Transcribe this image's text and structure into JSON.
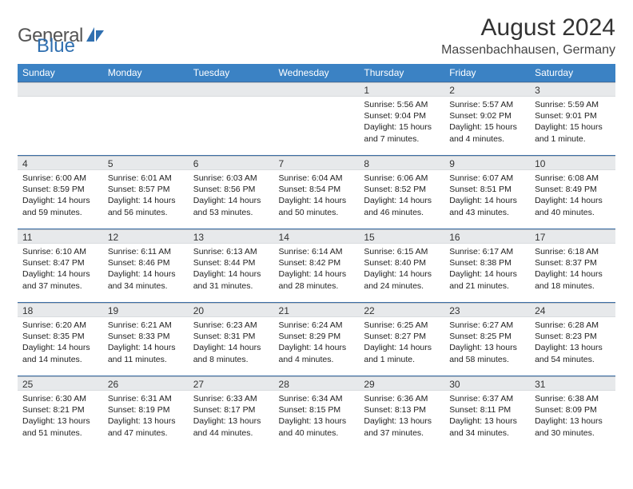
{
  "brand": {
    "name": "General",
    "accent": "Blue"
  },
  "title": "August 2024",
  "location": "Massenbachhausen, Germany",
  "colors": {
    "header_bg": "#3b82c4",
    "header_text": "#ffffff",
    "strip_bg": "#e7e9eb",
    "row_border": "#3b6ea5",
    "logo_gray": "#6a6f73",
    "logo_blue": "#2f6fb0"
  },
  "day_labels": [
    "Sunday",
    "Monday",
    "Tuesday",
    "Wednesday",
    "Thursday",
    "Friday",
    "Saturday"
  ],
  "weeks": [
    [
      {
        "n": "",
        "sr": "",
        "ss": "",
        "dl": ""
      },
      {
        "n": "",
        "sr": "",
        "ss": "",
        "dl": ""
      },
      {
        "n": "",
        "sr": "",
        "ss": "",
        "dl": ""
      },
      {
        "n": "",
        "sr": "",
        "ss": "",
        "dl": ""
      },
      {
        "n": "1",
        "sr": "Sunrise: 5:56 AM",
        "ss": "Sunset: 9:04 PM",
        "dl": "Daylight: 15 hours and 7 minutes."
      },
      {
        "n": "2",
        "sr": "Sunrise: 5:57 AM",
        "ss": "Sunset: 9:02 PM",
        "dl": "Daylight: 15 hours and 4 minutes."
      },
      {
        "n": "3",
        "sr": "Sunrise: 5:59 AM",
        "ss": "Sunset: 9:01 PM",
        "dl": "Daylight: 15 hours and 1 minute."
      }
    ],
    [
      {
        "n": "4",
        "sr": "Sunrise: 6:00 AM",
        "ss": "Sunset: 8:59 PM",
        "dl": "Daylight: 14 hours and 59 minutes."
      },
      {
        "n": "5",
        "sr": "Sunrise: 6:01 AM",
        "ss": "Sunset: 8:57 PM",
        "dl": "Daylight: 14 hours and 56 minutes."
      },
      {
        "n": "6",
        "sr": "Sunrise: 6:03 AM",
        "ss": "Sunset: 8:56 PM",
        "dl": "Daylight: 14 hours and 53 minutes."
      },
      {
        "n": "7",
        "sr": "Sunrise: 6:04 AM",
        "ss": "Sunset: 8:54 PM",
        "dl": "Daylight: 14 hours and 50 minutes."
      },
      {
        "n": "8",
        "sr": "Sunrise: 6:06 AM",
        "ss": "Sunset: 8:52 PM",
        "dl": "Daylight: 14 hours and 46 minutes."
      },
      {
        "n": "9",
        "sr": "Sunrise: 6:07 AM",
        "ss": "Sunset: 8:51 PM",
        "dl": "Daylight: 14 hours and 43 minutes."
      },
      {
        "n": "10",
        "sr": "Sunrise: 6:08 AM",
        "ss": "Sunset: 8:49 PM",
        "dl": "Daylight: 14 hours and 40 minutes."
      }
    ],
    [
      {
        "n": "11",
        "sr": "Sunrise: 6:10 AM",
        "ss": "Sunset: 8:47 PM",
        "dl": "Daylight: 14 hours and 37 minutes."
      },
      {
        "n": "12",
        "sr": "Sunrise: 6:11 AM",
        "ss": "Sunset: 8:46 PM",
        "dl": "Daylight: 14 hours and 34 minutes."
      },
      {
        "n": "13",
        "sr": "Sunrise: 6:13 AM",
        "ss": "Sunset: 8:44 PM",
        "dl": "Daylight: 14 hours and 31 minutes."
      },
      {
        "n": "14",
        "sr": "Sunrise: 6:14 AM",
        "ss": "Sunset: 8:42 PM",
        "dl": "Daylight: 14 hours and 28 minutes."
      },
      {
        "n": "15",
        "sr": "Sunrise: 6:15 AM",
        "ss": "Sunset: 8:40 PM",
        "dl": "Daylight: 14 hours and 24 minutes."
      },
      {
        "n": "16",
        "sr": "Sunrise: 6:17 AM",
        "ss": "Sunset: 8:38 PM",
        "dl": "Daylight: 14 hours and 21 minutes."
      },
      {
        "n": "17",
        "sr": "Sunrise: 6:18 AM",
        "ss": "Sunset: 8:37 PM",
        "dl": "Daylight: 14 hours and 18 minutes."
      }
    ],
    [
      {
        "n": "18",
        "sr": "Sunrise: 6:20 AM",
        "ss": "Sunset: 8:35 PM",
        "dl": "Daylight: 14 hours and 14 minutes."
      },
      {
        "n": "19",
        "sr": "Sunrise: 6:21 AM",
        "ss": "Sunset: 8:33 PM",
        "dl": "Daylight: 14 hours and 11 minutes."
      },
      {
        "n": "20",
        "sr": "Sunrise: 6:23 AM",
        "ss": "Sunset: 8:31 PM",
        "dl": "Daylight: 14 hours and 8 minutes."
      },
      {
        "n": "21",
        "sr": "Sunrise: 6:24 AM",
        "ss": "Sunset: 8:29 PM",
        "dl": "Daylight: 14 hours and 4 minutes."
      },
      {
        "n": "22",
        "sr": "Sunrise: 6:25 AM",
        "ss": "Sunset: 8:27 PM",
        "dl": "Daylight: 14 hours and 1 minute."
      },
      {
        "n": "23",
        "sr": "Sunrise: 6:27 AM",
        "ss": "Sunset: 8:25 PM",
        "dl": "Daylight: 13 hours and 58 minutes."
      },
      {
        "n": "24",
        "sr": "Sunrise: 6:28 AM",
        "ss": "Sunset: 8:23 PM",
        "dl": "Daylight: 13 hours and 54 minutes."
      }
    ],
    [
      {
        "n": "25",
        "sr": "Sunrise: 6:30 AM",
        "ss": "Sunset: 8:21 PM",
        "dl": "Daylight: 13 hours and 51 minutes."
      },
      {
        "n": "26",
        "sr": "Sunrise: 6:31 AM",
        "ss": "Sunset: 8:19 PM",
        "dl": "Daylight: 13 hours and 47 minutes."
      },
      {
        "n": "27",
        "sr": "Sunrise: 6:33 AM",
        "ss": "Sunset: 8:17 PM",
        "dl": "Daylight: 13 hours and 44 minutes."
      },
      {
        "n": "28",
        "sr": "Sunrise: 6:34 AM",
        "ss": "Sunset: 8:15 PM",
        "dl": "Daylight: 13 hours and 40 minutes."
      },
      {
        "n": "29",
        "sr": "Sunrise: 6:36 AM",
        "ss": "Sunset: 8:13 PM",
        "dl": "Daylight: 13 hours and 37 minutes."
      },
      {
        "n": "30",
        "sr": "Sunrise: 6:37 AM",
        "ss": "Sunset: 8:11 PM",
        "dl": "Daylight: 13 hours and 34 minutes."
      },
      {
        "n": "31",
        "sr": "Sunrise: 6:38 AM",
        "ss": "Sunset: 8:09 PM",
        "dl": "Daylight: 13 hours and 30 minutes."
      }
    ]
  ]
}
